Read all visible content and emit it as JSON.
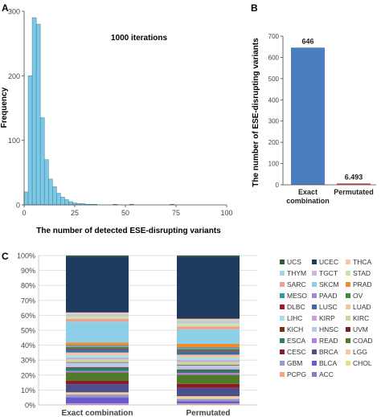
{
  "panels": {
    "a": "A",
    "b": "B",
    "c": "C"
  },
  "chart_data": [
    {
      "type": "bar",
      "panel": "A",
      "annotation": "1000 iterations",
      "xlabel": "The number of detected  ESE-disrupting variants",
      "ylabel": "Frequency",
      "xlim": [
        0,
        100
      ],
      "ylim": [
        0,
        300
      ],
      "xticks": [
        "0",
        "25",
        "50",
        "75",
        "100"
      ],
      "yticks": [
        "0",
        "100",
        "200",
        "300"
      ],
      "bin_width": 2,
      "bin_starts": [
        0,
        2,
        4,
        6,
        8,
        10,
        12,
        14,
        16,
        18,
        20,
        22,
        24,
        26,
        28,
        30,
        32,
        34,
        36,
        38,
        40,
        42,
        44,
        46,
        48,
        50,
        52,
        54,
        56,
        58,
        60,
        62,
        64,
        66,
        68,
        70,
        72,
        74
      ],
      "values": [
        20,
        200,
        290,
        280,
        135,
        70,
        40,
        28,
        18,
        12,
        8,
        5,
        3,
        2,
        2,
        1,
        1,
        1,
        0,
        0,
        0,
        0,
        1,
        0,
        0,
        0,
        1,
        0,
        0,
        0,
        0,
        0,
        0,
        0,
        0,
        0,
        1,
        0
      ],
      "bar_color": "#7ec8e3",
      "grid": false
    },
    {
      "type": "bar",
      "panel": "B",
      "ylabel": "The number of ESE-disrupting variants",
      "categories": [
        "Exact\ncombination",
        "Permutated"
      ],
      "values": [
        646,
        6.493
      ],
      "value_labels": [
        "646",
        "6.493"
      ],
      "ylim": [
        0,
        700
      ],
      "yticks": [
        "0",
        "100",
        "200",
        "300",
        "400",
        "500",
        "600",
        "700"
      ],
      "bar_color": "#4a7ebf",
      "grid": false
    },
    {
      "type": "bar",
      "stacked": true,
      "panel": "C",
      "categories": [
        "Exact combination",
        "Permutated"
      ],
      "ylim": [
        0,
        100
      ],
      "yticks": [
        "0%",
        "10%",
        "20%",
        "30%",
        "40%",
        "50%",
        "60%",
        "70%",
        "80%",
        "90%",
        "100%"
      ],
      "grid": true,
      "series": [
        {
          "name": "ACC",
          "color": "#8e7cc3",
          "values": [
            0.5,
            0.4
          ]
        },
        {
          "name": "PCPG",
          "color": "#f4a582",
          "values": [
            0.3,
            0.4
          ]
        },
        {
          "name": "BLCA",
          "color": "#6a5acd",
          "values": [
            3.5,
            1.3
          ]
        },
        {
          "name": "GBM",
          "color": "#9999cc",
          "values": [
            1.5,
            1.2
          ]
        },
        {
          "name": "CHOL",
          "color": "#e8e07a",
          "values": [
            0.4,
            0.5
          ]
        },
        {
          "name": "LGG",
          "color": "#f7c6a0",
          "values": [
            0.8,
            1.0
          ]
        },
        {
          "name": "BRCA",
          "color": "#4b4f8c",
          "values": [
            4.5,
            4.5
          ]
        },
        {
          "name": "CESC",
          "color": "#8b1a2b",
          "values": [
            2.0,
            2.2
          ]
        },
        {
          "name": "COAD",
          "color": "#4f7a28",
          "values": [
            4.5,
            5.0
          ]
        },
        {
          "name": "READ",
          "color": "#b77be0",
          "values": [
            0.8,
            1.0
          ]
        },
        {
          "name": "ESCA",
          "color": "#2e7d6b",
          "values": [
            1.8,
            1.5
          ]
        },
        {
          "name": "UVM",
          "color": "#7a2222",
          "values": [
            0.3,
            0.4
          ]
        },
        {
          "name": "HNSC",
          "color": "#b8c8e8",
          "values": [
            2.5,
            2.2
          ]
        },
        {
          "name": "KICH",
          "color": "#7a3010",
          "values": [
            0.3,
            0.3
          ]
        },
        {
          "name": "KIRC",
          "color": "#c8d89a",
          "values": [
            1.5,
            1.6
          ]
        },
        {
          "name": "KIRP",
          "color": "#c9a0dc",
          "values": [
            0.8,
            0.9
          ]
        },
        {
          "name": "LIHC",
          "color": "#a8ddec",
          "values": [
            1.5,
            1.5
          ]
        },
        {
          "name": "LUAD",
          "color": "#f9c49a",
          "values": [
            1.5,
            1.5
          ]
        },
        {
          "name": "LUSC",
          "color": "#3b6ea8",
          "values": [
            1.8,
            1.8
          ]
        },
        {
          "name": "DLBC",
          "color": "#a01c2c",
          "values": [
            0.5,
            0.5
          ]
        },
        {
          "name": "OV",
          "color": "#3d8b3d",
          "values": [
            0.8,
            0.8
          ]
        },
        {
          "name": "PAAD",
          "color": "#a089c9",
          "values": [
            0.6,
            0.6
          ]
        },
        {
          "name": "MESO",
          "color": "#2aa198",
          "values": [
            0.4,
            0.4
          ]
        },
        {
          "name": "PRAD",
          "color": "#f08c2a",
          "values": [
            1.5,
            1.8
          ]
        },
        {
          "name": "SKCM",
          "color": "#8ecfe8",
          "values": [
            11.5,
            8.0
          ]
        },
        {
          "name": "SARC",
          "color": "#f0a090",
          "values": [
            1.5,
            1.5
          ]
        },
        {
          "name": "STAD",
          "color": "#cfe0a8",
          "values": [
            1.5,
            1.8
          ]
        },
        {
          "name": "TGCT",
          "color": "#c9b8e0",
          "values": [
            0.5,
            0.6
          ]
        },
        {
          "name": "THYM",
          "color": "#a6d5e8",
          "values": [
            0.6,
            0.8
          ]
        },
        {
          "name": "THCA",
          "color": "#f5c9a8",
          "values": [
            1.0,
            1.0
          ]
        },
        {
          "name": "UCEC",
          "color": "#1f3a5f",
          "values": [
            31.0,
            34.0
          ]
        },
        {
          "name": "UCS",
          "color": "#2f5f2f",
          "values": [
            0.5,
            0.5
          ]
        }
      ],
      "legend_order": [
        "UCS",
        "UCEC",
        "THCA",
        "THYM",
        "TGCT",
        "STAD",
        "SARC",
        "SKCM",
        "PRAD",
        "MESO",
        "PAAD",
        "OV",
        "DLBC",
        "LUSC",
        "LUAD",
        "LIHC",
        "KIRP",
        "KIRC",
        "KICH",
        "HNSC",
        "UVM",
        "ESCA",
        "READ",
        "COAD",
        "CESC",
        "BRCA",
        "LGG",
        "GBM",
        "BLCA",
        "CHOL",
        "PCPG",
        "ACC"
      ],
      "legend_position": "right"
    }
  ]
}
